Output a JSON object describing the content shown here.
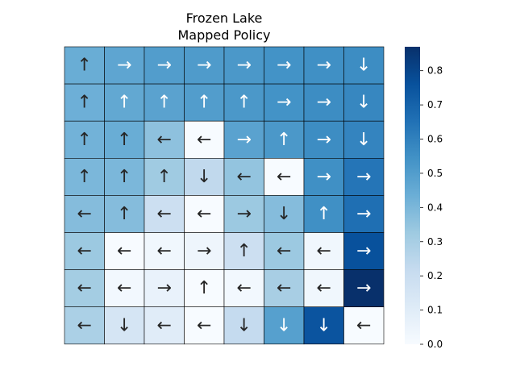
{
  "chart_data": {
    "type": "heatmap",
    "title": "Frozen Lake",
    "subtitle": "Mapped Policy",
    "xlabel": "",
    "ylabel": "",
    "rows": 8,
    "cols": 8,
    "values": [
      [
        0.44,
        0.47,
        0.5,
        0.51,
        0.52,
        0.54,
        0.55,
        0.56
      ],
      [
        0.43,
        0.46,
        0.48,
        0.5,
        0.52,
        0.54,
        0.56,
        0.58
      ],
      [
        0.42,
        0.44,
        0.36,
        0.0,
        0.48,
        0.52,
        0.56,
        0.59
      ],
      [
        0.4,
        0.4,
        0.32,
        0.23,
        0.35,
        0.0,
        0.55,
        0.64
      ],
      [
        0.38,
        0.38,
        0.19,
        0.0,
        0.33,
        0.38,
        0.55,
        0.66
      ],
      [
        0.33,
        0.0,
        0.03,
        0.04,
        0.19,
        0.33,
        0.03,
        0.76
      ],
      [
        0.31,
        0.02,
        0.06,
        0.0,
        0.02,
        0.3,
        0.03,
        0.87
      ],
      [
        0.29,
        0.15,
        0.1,
        0.0,
        0.22,
        0.49,
        0.75,
        0.0
      ]
    ],
    "annotations": [
      [
        "↑",
        "→",
        "→",
        "→",
        "→",
        "→",
        "→",
        "↓"
      ],
      [
        "↑",
        "↑",
        "↑",
        "↑",
        "↑",
        "→",
        "→",
        "↓"
      ],
      [
        "↑",
        "↑",
        "←",
        "←",
        "→",
        "↑",
        "→",
        "↓"
      ],
      [
        "↑",
        "↑",
        "↑",
        "↓",
        "←",
        "←",
        "→",
        "→"
      ],
      [
        "←",
        "↑",
        "←",
        "←",
        "→",
        "↓",
        "↑",
        "→"
      ],
      [
        "←",
        "←",
        "←",
        "→",
        "↑",
        "←",
        "←",
        "→"
      ],
      [
        "←",
        "←",
        "→",
        "↑",
        "←",
        "←",
        "←",
        "→"
      ],
      [
        "←",
        "↓",
        "←",
        "←",
        "↓",
        "↓",
        "↓",
        "←"
      ]
    ],
    "colormap": "Blues",
    "vmin": 0.0,
    "vmax": 0.87,
    "colorbar_ticks": [
      "0.0",
      "0.1",
      "0.2",
      "0.3",
      "0.4",
      "0.5",
      "0.6",
      "0.7",
      "0.8"
    ],
    "grid": true,
    "cell_border_color": "#000000"
  }
}
